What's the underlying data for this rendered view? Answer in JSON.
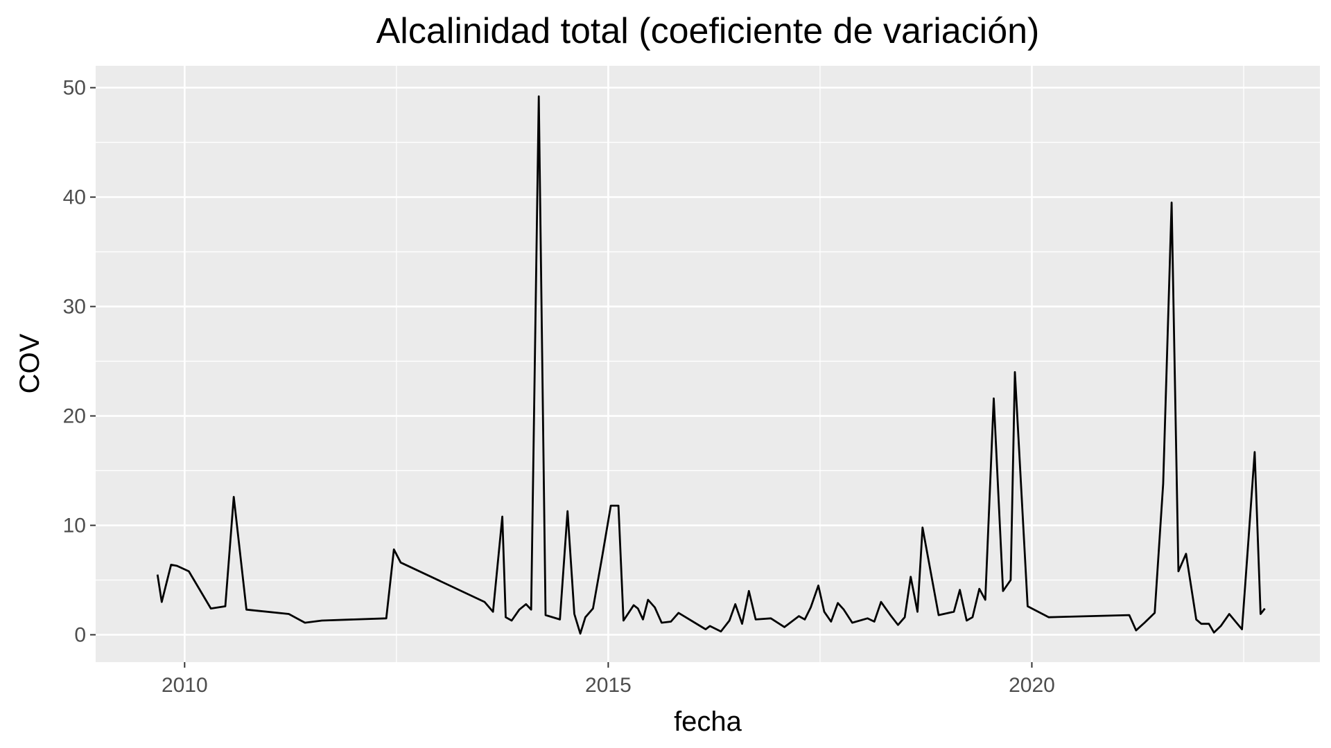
{
  "chart_data": {
    "type": "line",
    "title": "Alcalinidad total (coeficiente de variación)",
    "xlabel": "fecha",
    "ylabel": "COV",
    "xlim": [
      2008.95,
      2023.4
    ],
    "ylim": [
      -2.5,
      52
    ],
    "x_ticks": [
      2010,
      2015,
      2020
    ],
    "x_tick_labels": [
      "2010",
      "2015",
      "2020"
    ],
    "x_minor_ticks": [
      2012.5,
      2017.5,
      2022.5
    ],
    "y_ticks": [
      0,
      10,
      20,
      30,
      40,
      50
    ],
    "y_tick_labels": [
      "0",
      "10",
      "20",
      "30",
      "40",
      "50"
    ],
    "y_minor_ticks": [
      5,
      15,
      25,
      35,
      45
    ],
    "grid": true,
    "background": "#ebebeb",
    "grid_color": "#ffffff",
    "line_color": "#000000",
    "series": [
      {
        "x": [
          2009.68,
          2009.73,
          2009.84,
          2009.91,
          2010.05,
          2010.31,
          2010.48,
          2010.58,
          2010.73,
          2011.23,
          2011.42,
          2011.62,
          2012.38,
          2012.47,
          2012.55,
          2013.54,
          2013.64,
          2013.75,
          2013.79,
          2013.86,
          2013.95,
          2014.03,
          2014.09,
          2014.18,
          2014.26,
          2014.43,
          2014.52,
          2014.6,
          2014.67,
          2014.73,
          2014.82,
          2014.93,
          2015.03,
          2015.12,
          2015.18,
          2015.3,
          2015.35,
          2015.41,
          2015.47,
          2015.55,
          2015.63,
          2015.74,
          2015.83,
          2016.15,
          2016.2,
          2016.33,
          2016.43,
          2016.5,
          2016.58,
          2016.66,
          2016.74,
          2016.92,
          2017.08,
          2017.25,
          2017.32,
          2017.39,
          2017.48,
          2017.55,
          2017.63,
          2017.71,
          2017.78,
          2017.88,
          2018.06,
          2018.14,
          2018.22,
          2018.33,
          2018.42,
          2018.5,
          2018.57,
          2018.65,
          2018.71,
          2018.9,
          2019.08,
          2019.15,
          2019.23,
          2019.3,
          2019.38,
          2019.45,
          2019.55,
          2019.66,
          2019.75,
          2019.8,
          2019.95,
          2020.2,
          2021.15,
          2021.23,
          2021.33,
          2021.45,
          2021.55,
          2021.65,
          2021.73,
          2021.82,
          2021.94,
          2022.0,
          2022.09,
          2022.15,
          2022.23,
          2022.33,
          2022.48,
          2022.56,
          2022.63,
          2022.7,
          2022.75
        ],
        "y": [
          5.5,
          3.0,
          6.4,
          6.3,
          5.8,
          2.4,
          2.6,
          12.6,
          2.3,
          1.9,
          1.1,
          1.3,
          1.5,
          7.8,
          6.6,
          3.0,
          2.1,
          10.8,
          1.6,
          1.3,
          2.3,
          2.8,
          2.3,
          49.2,
          1.8,
          1.4,
          11.3,
          1.9,
          0.1,
          1.6,
          2.4,
          7.2,
          11.8,
          11.8,
          1.3,
          2.7,
          2.4,
          1.4,
          3.2,
          2.5,
          1.1,
          1.2,
          2.0,
          0.5,
          0.8,
          0.3,
          1.3,
          2.8,
          1.0,
          4.0,
          1.4,
          1.5,
          0.7,
          1.7,
          1.4,
          2.5,
          4.5,
          2.1,
          1.2,
          2.9,
          2.3,
          1.1,
          1.5,
          1.2,
          3.0,
          1.8,
          0.9,
          1.6,
          5.3,
          2.1,
          9.8,
          1.8,
          2.1,
          4.1,
          1.3,
          1.6,
          4.2,
          3.2,
          21.6,
          4.0,
          5.0,
          24.0,
          2.6,
          1.6,
          1.8,
          0.4,
          1.1,
          2.0,
          13.8,
          39.5,
          5.8,
          7.4,
          1.4,
          1.0,
          1.0,
          0.2,
          0.8,
          1.9,
          0.5,
          9.0,
          16.7,
          1.9,
          2.4
        ]
      }
    ]
  }
}
